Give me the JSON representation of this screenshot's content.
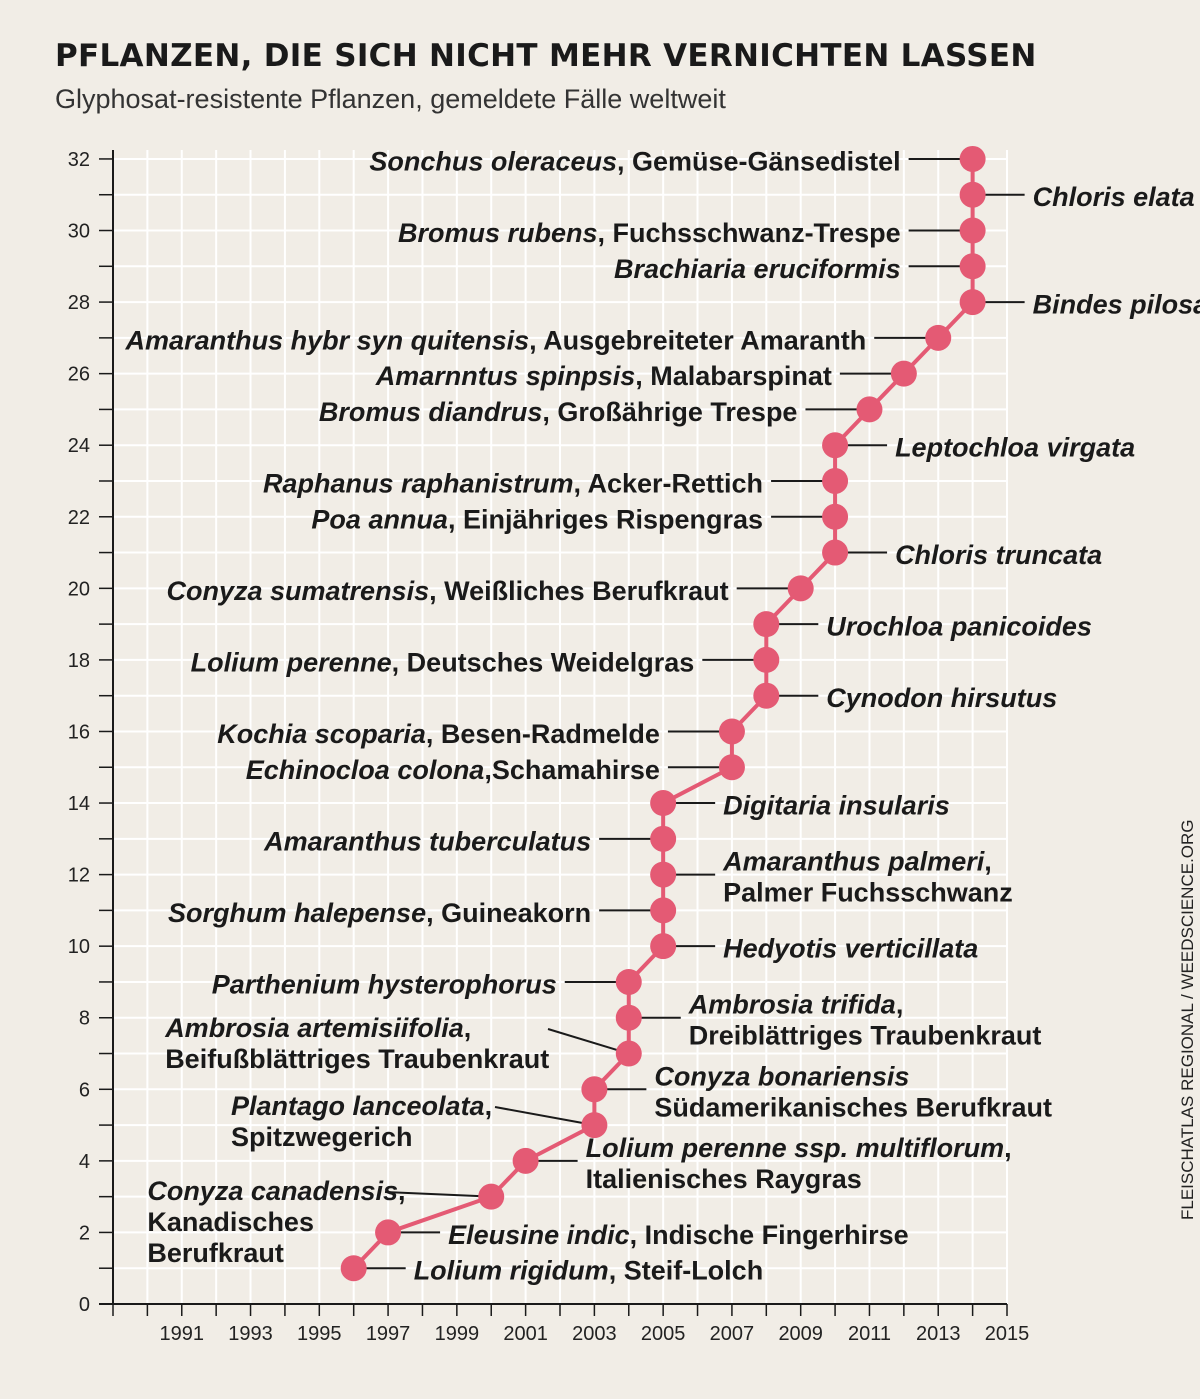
{
  "title": "PFLANZEN, DIE SICH NICHT MEHR VERNICHTEN LASSEN",
  "subtitle": "Glyphosat-resistente Pflanzen, gemeldete Fälle weltweit",
  "source": "FLEISCHATLAS REGIONAL / WEEDSCIENCE.ORG",
  "colors": {
    "point": "#e45a74",
    "line": "#e45a74",
    "grid": "#ffffff",
    "axis": "#1a1a1a",
    "background": "#f1ede6"
  },
  "chart_data": {
    "type": "line",
    "title": "PFLANZEN, DIE SICH NICHT MEHR VERNICHTEN LASSEN",
    "subtitle": "Glyphosat-resistente Pflanzen, gemeldete Fälle weltweit",
    "xlabel": "",
    "ylabel": "",
    "xlim": [
      1989,
      2015
    ],
    "ylim": [
      0,
      32
    ],
    "x_ticks": [
      "1991",
      "1993",
      "1995",
      "1997",
      "1999",
      "2001",
      "2003",
      "2005",
      "2007",
      "2009",
      "2011",
      "2013",
      "2015"
    ],
    "y_ticks": [
      "0",
      "2",
      "4",
      "6",
      "8",
      "10",
      "12",
      "14",
      "16",
      "18",
      "20",
      "22",
      "24",
      "26",
      "28",
      "30",
      "32"
    ],
    "grid": true,
    "points": [
      {
        "x": 1996,
        "y": 1,
        "side": "right",
        "lines": [
          [
            {
              "t": "Lolium rigidum",
              "i": true
            },
            {
              "t": ", Steif-Lolch",
              "i": false
            }
          ]
        ]
      },
      {
        "x": 1997,
        "y": 2,
        "side": "right",
        "lines": [
          [
            {
              "t": "Eleusine indic",
              "i": true
            },
            {
              "t": ", Indische Fingerhirse",
              "i": false
            }
          ]
        ]
      },
      {
        "x": 2000,
        "y": 3,
        "side": "left",
        "lines": [
          [
            {
              "t": "Conyza canadensis",
              "i": true
            },
            {
              "t": ",",
              "i": false
            }
          ],
          [
            {
              "t": "Kanadisches",
              "i": false
            }
          ],
          [
            {
              "t": "Berufkraut",
              "i": false
            }
          ]
        ]
      },
      {
        "x": 2001,
        "y": 4,
        "side": "right",
        "lines": [
          [
            {
              "t": "Lolium perenne ssp. multiflorum",
              "i": true
            },
            {
              "t": ",",
              "i": false
            }
          ],
          [
            {
              "t": "Italienisches Raygras",
              "i": false
            }
          ]
        ]
      },
      {
        "x": 2003,
        "y": 5,
        "side": "left",
        "lines": [
          [
            {
              "t": "Plantago lanceolata",
              "i": true
            },
            {
              "t": ",",
              "i": false
            }
          ],
          [
            {
              "t": "Spitzwegerich",
              "i": false
            }
          ]
        ]
      },
      {
        "x": 2003,
        "y": 6,
        "side": "right",
        "lines": [
          [
            {
              "t": "Conyza bonariensis",
              "i": true
            }
          ],
          [
            {
              "t": "Südamerikanisches Berufkraut",
              "i": false
            }
          ]
        ]
      },
      {
        "x": 2004,
        "y": 7,
        "side": "left",
        "lines": [
          [
            {
              "t": "Ambrosia artemisiifolia",
              "i": true
            },
            {
              "t": ",",
              "i": false
            }
          ],
          [
            {
              "t": "Beifußblättriges Traubenkraut",
              "i": false
            }
          ]
        ]
      },
      {
        "x": 2004,
        "y": 8,
        "side": "right",
        "lines": [
          [
            {
              "t": "Ambrosia trifida",
              "i": true
            },
            {
              "t": ",",
              "i": false
            }
          ],
          [
            {
              "t": "Dreiblättriges Traubenkraut",
              "i": false
            }
          ]
        ]
      },
      {
        "x": 2004,
        "y": 9,
        "side": "left",
        "lines": [
          [
            {
              "t": "Parthenium hysterophorus",
              "i": true
            }
          ]
        ]
      },
      {
        "x": 2005,
        "y": 10,
        "side": "right",
        "lines": [
          [
            {
              "t": "Hedyotis verticillata",
              "i": true
            }
          ]
        ]
      },
      {
        "x": 2005,
        "y": 11,
        "side": "left",
        "lines": [
          [
            {
              "t": "Sorghum halepense",
              "i": true
            },
            {
              "t": ", Guineakorn",
              "i": false
            }
          ]
        ]
      },
      {
        "x": 2005,
        "y": 12,
        "side": "right",
        "lines": [
          [
            {
              "t": "Amaranthus palmeri",
              "i": true
            },
            {
              "t": ",",
              "i": false
            }
          ],
          [
            {
              "t": "Palmer Fuchsschwanz",
              "i": false
            }
          ]
        ]
      },
      {
        "x": 2005,
        "y": 13,
        "side": "left",
        "lines": [
          [
            {
              "t": "Amaranthus tuberculatus",
              "i": true
            }
          ]
        ]
      },
      {
        "x": 2005,
        "y": 14,
        "side": "right",
        "lines": [
          [
            {
              "t": "Digitaria insularis",
              "i": true
            }
          ]
        ]
      },
      {
        "x": 2007,
        "y": 15,
        "side": "left",
        "lines": [
          [
            {
              "t": "Echinocloa colona",
              "i": true
            },
            {
              "t": ",Schamahirse",
              "i": false
            }
          ]
        ]
      },
      {
        "x": 2007,
        "y": 16,
        "side": "left",
        "lines": [
          [
            {
              "t": "Kochia scoparia",
              "i": true
            },
            {
              "t": ", Besen-Radmelde",
              "i": false
            }
          ]
        ]
      },
      {
        "x": 2008,
        "y": 17,
        "side": "right",
        "lines": [
          [
            {
              "t": "Cynodon hirsutus",
              "i": true
            }
          ]
        ]
      },
      {
        "x": 2008,
        "y": 18,
        "side": "left",
        "lines": [
          [
            {
              "t": "Lolium perenne",
              "i": true
            },
            {
              "t": ", Deutsches Weidelgras",
              "i": false
            }
          ]
        ]
      },
      {
        "x": 2008,
        "y": 19,
        "side": "right",
        "lines": [
          [
            {
              "t": "Urochloa panicoides",
              "i": true
            }
          ]
        ]
      },
      {
        "x": 2009,
        "y": 20,
        "side": "left",
        "lines": [
          [
            {
              "t": "Conyza sumatrensis",
              "i": true
            },
            {
              "t": ", Weißliches Berufkraut",
              "i": false
            }
          ]
        ]
      },
      {
        "x": 2010,
        "y": 21,
        "side": "right",
        "lines": [
          [
            {
              "t": "Chloris truncata",
              "i": true
            }
          ]
        ]
      },
      {
        "x": 2010,
        "y": 22,
        "side": "left",
        "lines": [
          [
            {
              "t": "Poa annua",
              "i": true
            },
            {
              "t": ", Einjähriges Rispengras",
              "i": false
            }
          ]
        ]
      },
      {
        "x": 2010,
        "y": 23,
        "side": "left",
        "lines": [
          [
            {
              "t": "Raphanus raphanistrum",
              "i": true
            },
            {
              "t": ", Acker-Rettich",
              "i": false
            }
          ]
        ]
      },
      {
        "x": 2010,
        "y": 24,
        "side": "right",
        "lines": [
          [
            {
              "t": "Leptochloa virgata",
              "i": true
            }
          ]
        ]
      },
      {
        "x": 2011,
        "y": 25,
        "side": "left",
        "lines": [
          [
            {
              "t": "Bromus diandrus",
              "i": true
            },
            {
              "t": ", Großährige Trespe",
              "i": false
            }
          ]
        ]
      },
      {
        "x": 2012,
        "y": 26,
        "side": "left",
        "lines": [
          [
            {
              "t": "Amarnntus spinpsis",
              "i": true
            },
            {
              "t": ", Malabarspinat",
              "i": false
            }
          ]
        ]
      },
      {
        "x": 2013,
        "y": 27,
        "side": "left",
        "lines": [
          [
            {
              "t": "Amaranthus hybr syn quitensis",
              "i": true
            },
            {
              "t": ", Ausgebreiteter Amaranth",
              "i": false
            }
          ]
        ]
      },
      {
        "x": 2014,
        "y": 28,
        "side": "right",
        "lines": [
          [
            {
              "t": "Bindes pilosa",
              "i": true
            }
          ]
        ]
      },
      {
        "x": 2014,
        "y": 29,
        "side": "left",
        "lines": [
          [
            {
              "t": "Brachiaria eruciformis",
              "i": true
            }
          ]
        ]
      },
      {
        "x": 2014,
        "y": 30,
        "side": "left",
        "lines": [
          [
            {
              "t": "Bromus rubens",
              "i": true
            },
            {
              "t": ", Fuchsschwanz-Trespe",
              "i": false
            }
          ]
        ]
      },
      {
        "x": 2014,
        "y": 31,
        "side": "right",
        "lines": [
          [
            {
              "t": "Chloris elata",
              "i": true
            }
          ]
        ]
      },
      {
        "x": 2014,
        "y": 32,
        "side": "left",
        "lines": [
          [
            {
              "t": "Sonchus oleraceus",
              "i": true
            },
            {
              "t": ", Gemüse-Gänsedistel",
              "i": false
            }
          ]
        ]
      }
    ]
  }
}
